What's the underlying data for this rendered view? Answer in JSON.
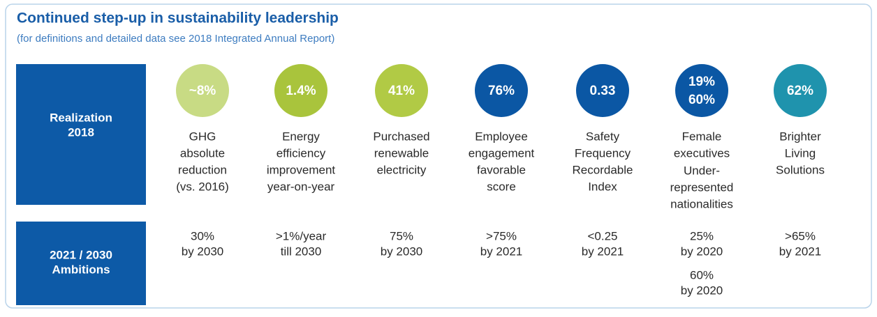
{
  "header": {
    "title": "Continued step-up in sustainability leadership",
    "subtitle": "(for definitions and detailed data see 2018 Integrated Annual Report)"
  },
  "row_labels": {
    "realization": [
      "Realization",
      "2018"
    ],
    "ambitions": [
      "2021 / 2030",
      "Ambitions"
    ]
  },
  "columns": [
    {
      "badge": [
        "~8%"
      ],
      "color": "#c8db84",
      "description": [
        [
          "GHG",
          "absolute",
          "reduction",
          "(vs. 2016)"
        ]
      ],
      "ambition": [
        [
          "30%",
          "by 2030"
        ]
      ]
    },
    {
      "badge": [
        "1.4%"
      ],
      "color": "#a9c43c",
      "description": [
        [
          "Energy",
          "efficiency",
          "improvement",
          "year-on-year"
        ]
      ],
      "ambition": [
        [
          ">1%/year",
          "till 2030"
        ]
      ]
    },
    {
      "badge": [
        "41%"
      ],
      "color": "#b1ca45",
      "description": [
        [
          "Purchased",
          "renewable",
          "electricity"
        ]
      ],
      "ambition": [
        [
          "75%",
          "by 2030"
        ]
      ]
    },
    {
      "badge": [
        "76%"
      ],
      "color": "#0b57a4",
      "description": [
        [
          "Employee",
          "engagement",
          "favorable",
          "score"
        ]
      ],
      "ambition": [
        [
          ">75%",
          "by 2021"
        ]
      ]
    },
    {
      "badge": [
        "0.33"
      ],
      "color": "#0b57a4",
      "description": [
        [
          "Safety",
          "Frequency",
          "Recordable",
          "Index"
        ]
      ],
      "ambition": [
        [
          "<0.25",
          "by 2021"
        ]
      ]
    },
    {
      "badge": [
        "19%",
        "60%"
      ],
      "color": "#0b57a4",
      "description": [
        [
          "Female",
          "executives"
        ],
        [
          "Under-",
          "represented",
          "nationalities"
        ]
      ],
      "ambition": [
        [
          "25%",
          "by 2020"
        ],
        [
          "60%",
          "by 2020"
        ]
      ]
    },
    {
      "badge": [
        "62%"
      ],
      "color": "#1f93ad",
      "description": [
        [
          "Brighter",
          "Living",
          "Solutions"
        ]
      ],
      "ambition": [
        [
          ">65%",
          "by 2021"
        ]
      ]
    }
  ]
}
